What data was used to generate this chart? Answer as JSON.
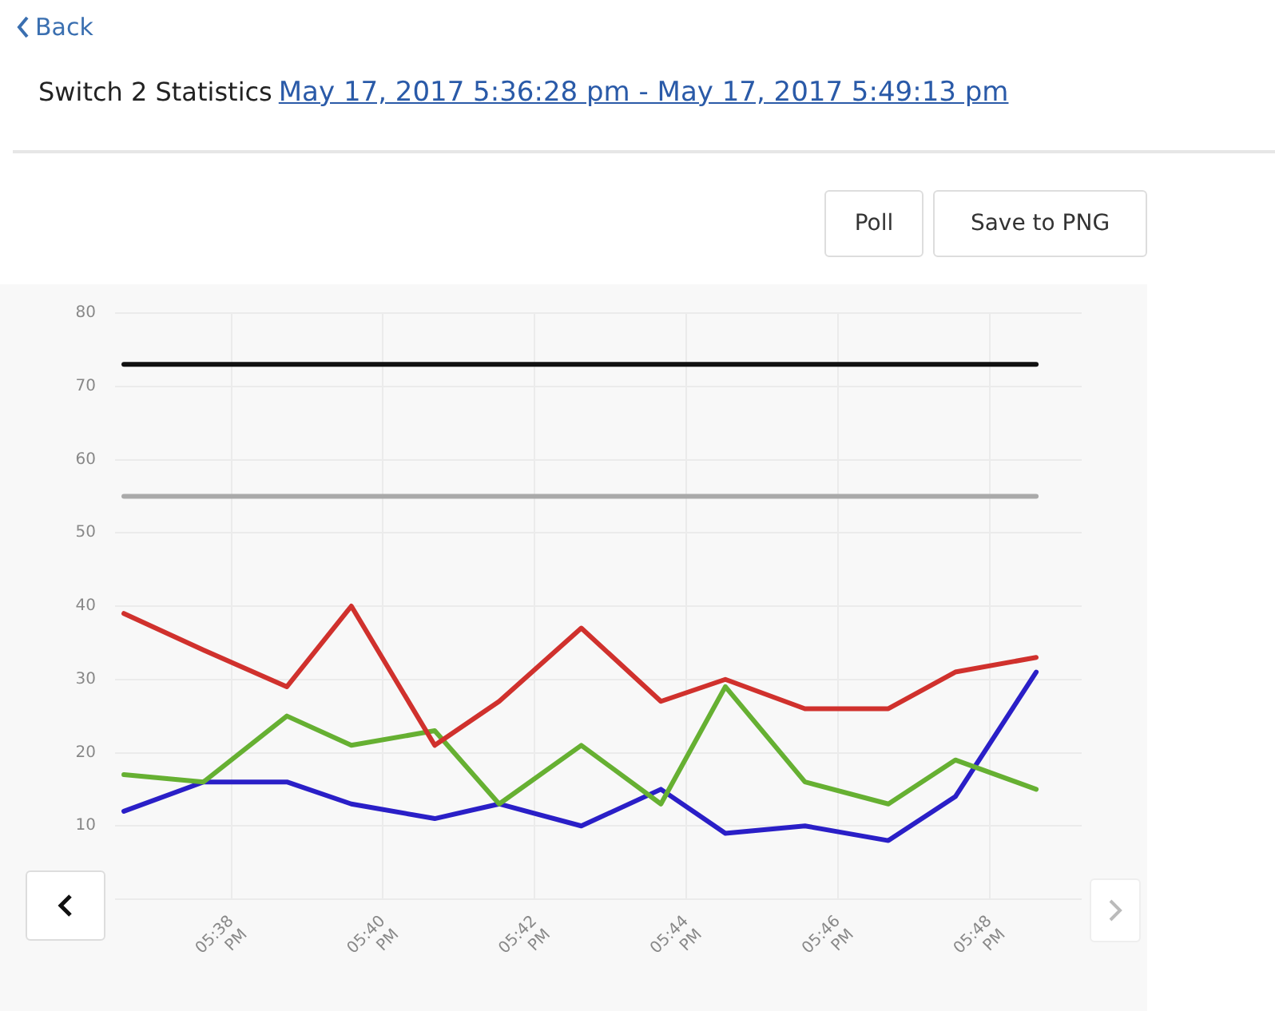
{
  "chart_data": {
    "type": "line",
    "title": "Switch 2 Statistics",
    "subtitle": "May 17, 2017 5:36:28 pm - May 17, 2017 5:49:13 pm",
    "annotations": [
      "Back",
      "Poll",
      "Save to PNG"
    ],
    "x": [
      "2017-05-17T17:36:35",
      "2017-05-17T17:37:38",
      "2017-05-17T17:38:44",
      "2017-05-17T17:39:35",
      "2017-05-17T17:40:41",
      "2017-05-17T17:41:32",
      "2017-05-17T17:42:37",
      "2017-05-17T17:43:40",
      "2017-05-17T17:44:31",
      "2017-05-17T17:45:34",
      "2017-05-17T17:46:40",
      "2017-05-17T17:47:33",
      "2017-05-17T17:48:37"
    ],
    "series": [
      {
        "color": "#d0312d",
        "values": [
          39,
          34,
          29,
          40,
          21,
          27,
          37,
          27,
          30,
          26,
          26,
          31,
          33
        ]
      },
      {
        "color": "#66b032",
        "values": [
          17,
          16,
          25,
          21,
          23,
          13,
          21,
          13,
          29,
          16,
          13,
          19,
          15
        ]
      },
      {
        "color": "#2a1fc7",
        "values": [
          12,
          16,
          16,
          13,
          11,
          13,
          10,
          15,
          9,
          10,
          8,
          14,
          31
        ]
      },
      {
        "color": "#111111",
        "x": [
          "2017-05-17T17:36:35",
          "2017-05-17T17:48:37"
        ],
        "values": [
          73,
          73
        ]
      },
      {
        "color": "#aaaaaa",
        "x": [
          "2017-05-17T17:36:35",
          "2017-05-17T17:48:37"
        ],
        "values": [
          55,
          55
        ]
      }
    ],
    "xlim": [
      "2017-05-17T17:36:28",
      "2017-05-17T17:49:13"
    ],
    "xticks": [
      {
        "value": "2017-05-17T17:38",
        "label": "05:38 PM"
      },
      {
        "value": "2017-05-17T17:40",
        "label": "05:40 PM"
      },
      {
        "value": "2017-05-17T17:42",
        "label": "05:42 PM"
      },
      {
        "value": "2017-05-17T17:44",
        "label": "05:44 PM"
      },
      {
        "value": "2017-05-17T17:46",
        "label": "05:46 PM"
      },
      {
        "value": "2017-05-17T17:48",
        "label": "05:48 PM"
      }
    ],
    "ylim": [
      0,
      80
    ],
    "yticks": [
      {
        "value": 0,
        "label": null
      },
      10,
      20,
      30,
      40,
      50,
      60,
      70,
      80
    ],
    "grid": true,
    "legend": false,
    "marker": "none",
    "line_style": "solid"
  }
}
